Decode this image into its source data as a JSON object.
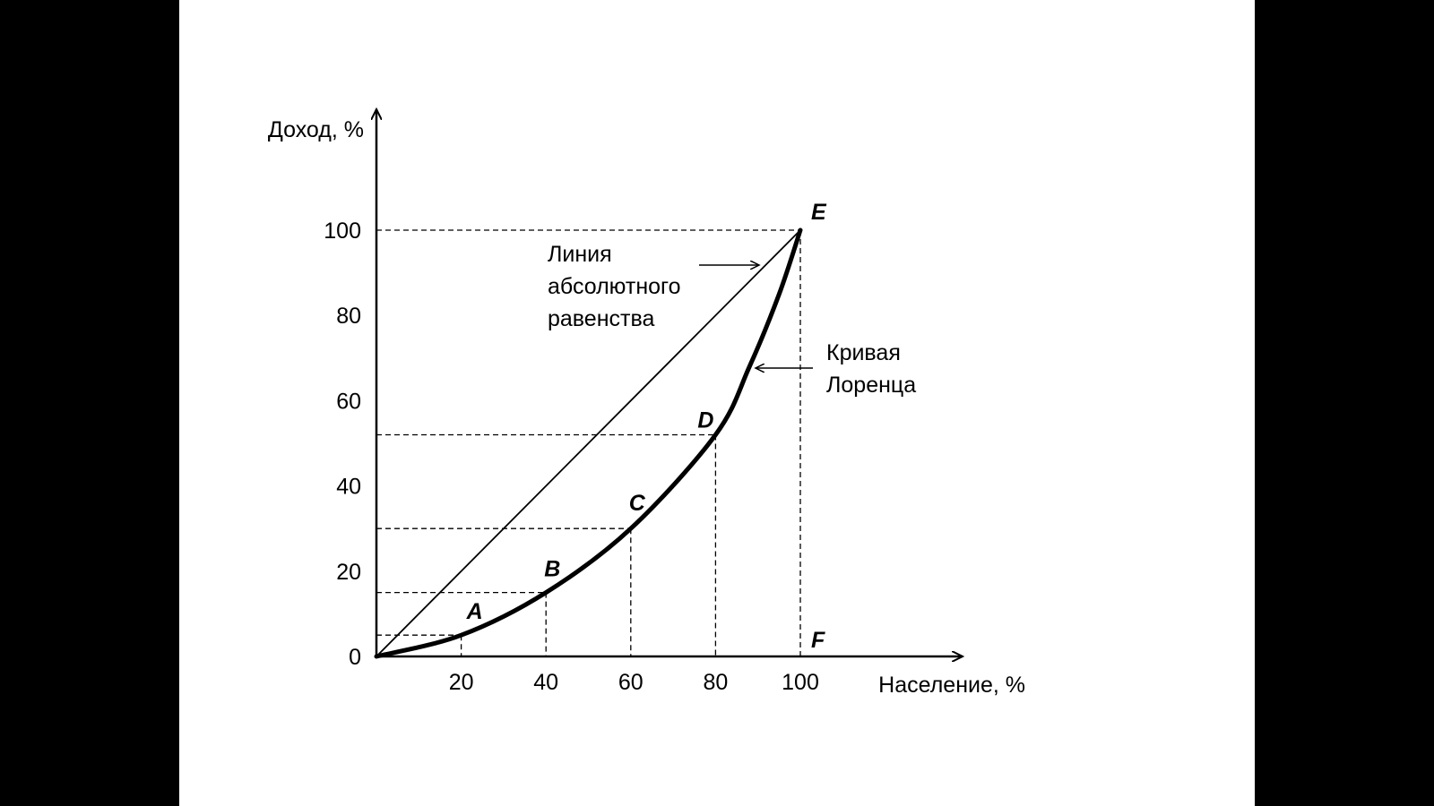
{
  "chart_data": {
    "type": "line",
    "title": "",
    "xlabel": "Население, %",
    "ylabel": "Доход, %",
    "xlim": [
      0,
      100
    ],
    "ylim": [
      0,
      100
    ],
    "x_ticks": [
      "20",
      "40",
      "60",
      "80",
      "100"
    ],
    "y_ticks": [
      "0",
      "20",
      "40",
      "60",
      "80",
      "100"
    ],
    "grid": false,
    "series": [
      {
        "name": "Линия абсолютного равенства",
        "x": [
          0,
          100
        ],
        "y": [
          0,
          100
        ],
        "style": "thin"
      },
      {
        "name": "Кривая Лоренца",
        "x": [
          0,
          20,
          40,
          60,
          80,
          88,
          95,
          100
        ],
        "y": [
          0,
          5,
          15,
          30,
          52,
          68,
          85,
          100
        ],
        "style": "bold"
      }
    ],
    "points": [
      {
        "label": "A",
        "x": 20,
        "y": 5
      },
      {
        "label": "B",
        "x": 40,
        "y": 15
      },
      {
        "label": "C",
        "x": 60,
        "y": 30
      },
      {
        "label": "D",
        "x": 80,
        "y": 52
      },
      {
        "label": "E",
        "x": 100,
        "y": 100
      },
      {
        "label": "F",
        "x": 100,
        "y": 5
      }
    ],
    "annotations": {
      "equality_line": [
        "Линия",
        "абсолютного",
        "равенства"
      ],
      "lorenz_curve": [
        "Кривая",
        "Лоренца"
      ]
    }
  }
}
